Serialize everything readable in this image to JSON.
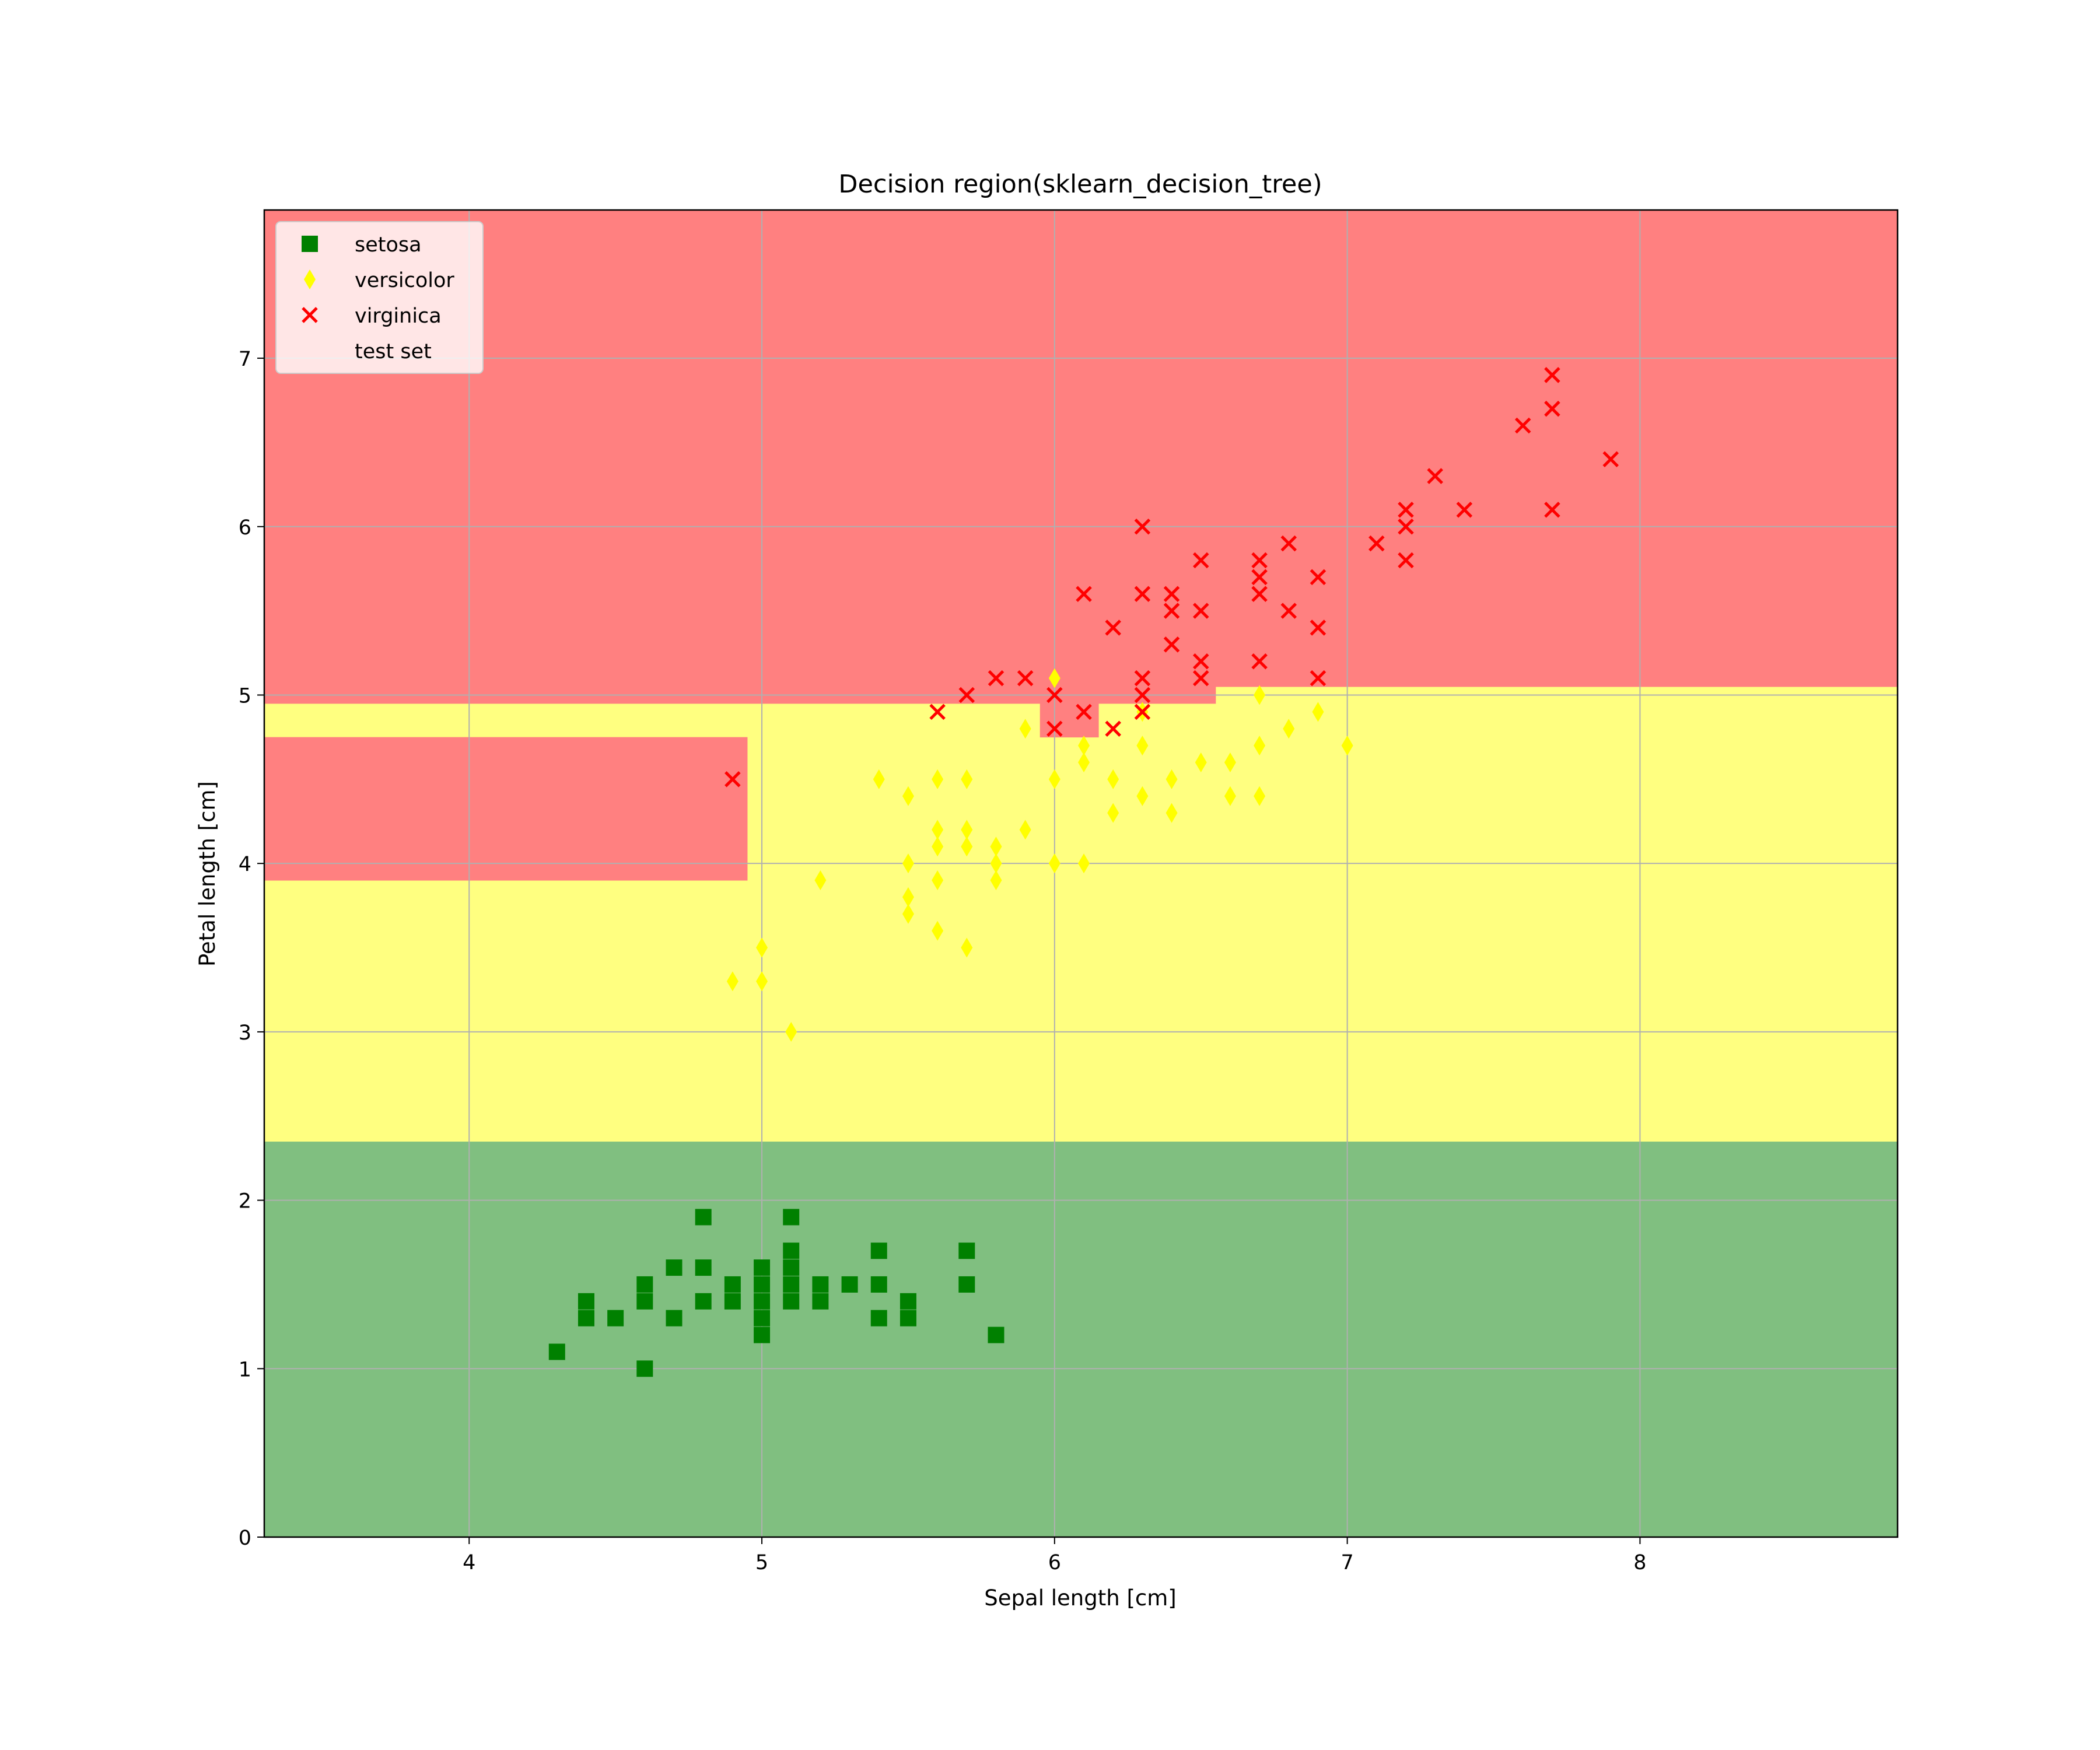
{
  "chart_data": {
    "type": "scatter",
    "title": "Decision region(sklearn_decision_tree)",
    "xlabel": "Sepal length [cm]",
    "ylabel": "Petal length [cm]",
    "xlim": [
      3.3,
      8.88
    ],
    "ylim": [
      0,
      7.88
    ],
    "xticks": [
      4,
      5,
      6,
      7,
      8
    ],
    "yticks": [
      0,
      1,
      2,
      3,
      4,
      5,
      6,
      7
    ],
    "grid": true,
    "legend_position": "top-left",
    "colors": {
      "setosa": "#008000",
      "versicolor": "#ffff00",
      "virginica": "#ff0000",
      "region_setosa": "#80bf80",
      "region_versicolor": "#ffff80",
      "region_virginica": "#ff8080",
      "grid": "#b0b0b0"
    },
    "regions": [
      {
        "class": "setosa",
        "x": [
          3.3,
          8.88
        ],
        "y": [
          0,
          2.35
        ]
      },
      {
        "class": "versicolor",
        "x": [
          3.3,
          8.88
        ],
        "y": [
          2.35,
          4.95
        ]
      },
      {
        "class": "versicolor",
        "x": [
          6.55,
          8.88
        ],
        "y": [
          4.95,
          5.05
        ]
      },
      {
        "class": "virginica",
        "x": [
          3.3,
          8.88
        ],
        "y": [
          5.05,
          7.88
        ]
      },
      {
        "class": "virginica",
        "x": [
          3.3,
          6.55
        ],
        "y": [
          4.95,
          5.05
        ]
      },
      {
        "class": "virginica",
        "x": [
          3.3,
          4.95
        ],
        "y": [
          3.9,
          4.75
        ]
      },
      {
        "class": "virginica",
        "x": [
          5.95,
          6.15
        ],
        "y": [
          4.75,
          4.95
        ]
      }
    ],
    "series": [
      {
        "name": "setosa",
        "marker": "square",
        "points": [
          [
            4.3,
            1.1
          ],
          [
            4.4,
            1.3
          ],
          [
            4.4,
            1.4
          ],
          [
            4.5,
            1.3
          ],
          [
            4.6,
            1.0
          ],
          [
            4.6,
            1.4
          ],
          [
            4.6,
            1.5
          ],
          [
            4.7,
            1.3
          ],
          [
            4.7,
            1.6
          ],
          [
            4.8,
            1.4
          ],
          [
            4.8,
            1.6
          ],
          [
            4.8,
            1.9
          ],
          [
            4.9,
            1.4
          ],
          [
            4.9,
            1.5
          ],
          [
            5.0,
            1.2
          ],
          [
            5.0,
            1.3
          ],
          [
            5.0,
            1.4
          ],
          [
            5.0,
            1.5
          ],
          [
            5.0,
            1.6
          ],
          [
            5.1,
            1.4
          ],
          [
            5.1,
            1.5
          ],
          [
            5.1,
            1.6
          ],
          [
            5.1,
            1.7
          ],
          [
            5.1,
            1.9
          ],
          [
            5.2,
            1.4
          ],
          [
            5.2,
            1.5
          ],
          [
            5.3,
            1.5
          ],
          [
            5.4,
            1.3
          ],
          [
            5.4,
            1.5
          ],
          [
            5.4,
            1.7
          ],
          [
            5.5,
            1.3
          ],
          [
            5.5,
            1.4
          ],
          [
            5.7,
            1.5
          ],
          [
            5.7,
            1.7
          ],
          [
            5.8,
            1.2
          ]
        ]
      },
      {
        "name": "versicolor",
        "marker": "diamond",
        "points": [
          [
            4.9,
            3.3
          ],
          [
            5.0,
            3.3
          ],
          [
            5.0,
            3.5
          ],
          [
            5.1,
            3.0
          ],
          [
            5.2,
            3.9
          ],
          [
            5.4,
            4.5
          ],
          [
            5.5,
            3.7
          ],
          [
            5.5,
            3.8
          ],
          [
            5.5,
            4.0
          ],
          [
            5.5,
            4.4
          ],
          [
            5.6,
            3.6
          ],
          [
            5.6,
            3.9
          ],
          [
            5.6,
            4.1
          ],
          [
            5.6,
            4.2
          ],
          [
            5.6,
            4.5
          ],
          [
            5.7,
            3.5
          ],
          [
            5.7,
            4.1
          ],
          [
            5.7,
            4.2
          ],
          [
            5.7,
            4.5
          ],
          [
            5.8,
            3.9
          ],
          [
            5.8,
            4.0
          ],
          [
            5.8,
            4.1
          ],
          [
            5.9,
            4.2
          ],
          [
            5.9,
            4.8
          ],
          [
            6.0,
            4.0
          ],
          [
            6.0,
            4.5
          ],
          [
            6.0,
            5.1
          ],
          [
            6.1,
            4.0
          ],
          [
            6.1,
            4.6
          ],
          [
            6.1,
            4.7
          ],
          [
            6.2,
            4.3
          ],
          [
            6.2,
            4.5
          ],
          [
            6.3,
            4.4
          ],
          [
            6.3,
            4.7
          ],
          [
            6.3,
            4.9
          ],
          [
            6.4,
            4.3
          ],
          [
            6.4,
            4.5
          ],
          [
            6.5,
            4.6
          ],
          [
            6.6,
            4.4
          ],
          [
            6.6,
            4.6
          ],
          [
            6.7,
            4.4
          ],
          [
            6.7,
            4.7
          ],
          [
            6.7,
            5.0
          ],
          [
            6.8,
            4.8
          ],
          [
            6.9,
            4.9
          ],
          [
            7.0,
            4.7
          ]
        ]
      },
      {
        "name": "virginica",
        "marker": "x",
        "points": [
          [
            4.9,
            4.5
          ],
          [
            5.6,
            4.9
          ],
          [
            5.7,
            5.0
          ],
          [
            5.8,
            5.1
          ],
          [
            5.9,
            5.1
          ],
          [
            6.0,
            4.8
          ],
          [
            6.0,
            5.0
          ],
          [
            6.1,
            4.9
          ],
          [
            6.1,
            5.6
          ],
          [
            6.2,
            4.8
          ],
          [
            6.2,
            5.4
          ],
          [
            6.3,
            4.9
          ],
          [
            6.3,
            5.0
          ],
          [
            6.3,
            5.1
          ],
          [
            6.3,
            5.6
          ],
          [
            6.3,
            6.0
          ],
          [
            6.4,
            5.3
          ],
          [
            6.4,
            5.5
          ],
          [
            6.4,
            5.6
          ],
          [
            6.5,
            5.1
          ],
          [
            6.5,
            5.2
          ],
          [
            6.5,
            5.5
          ],
          [
            6.5,
            5.8
          ],
          [
            6.7,
            5.2
          ],
          [
            6.7,
            5.6
          ],
          [
            6.7,
            5.7
          ],
          [
            6.7,
            5.8
          ],
          [
            6.8,
            5.5
          ],
          [
            6.8,
            5.9
          ],
          [
            6.9,
            5.1
          ],
          [
            6.9,
            5.4
          ],
          [
            6.9,
            5.7
          ],
          [
            7.1,
            5.9
          ],
          [
            7.2,
            5.8
          ],
          [
            7.2,
            6.0
          ],
          [
            7.2,
            6.1
          ],
          [
            7.3,
            6.3
          ],
          [
            7.4,
            6.1
          ],
          [
            7.6,
            6.6
          ],
          [
            7.7,
            6.1
          ],
          [
            7.7,
            6.7
          ],
          [
            7.7,
            6.9
          ],
          [
            7.9,
            6.4
          ]
        ]
      }
    ],
    "legend": [
      {
        "label": "setosa",
        "marker": "square"
      },
      {
        "label": "versicolor",
        "marker": "diamond"
      },
      {
        "label": "virginica",
        "marker": "x"
      },
      {
        "label": "test set",
        "marker": "none"
      }
    ]
  }
}
